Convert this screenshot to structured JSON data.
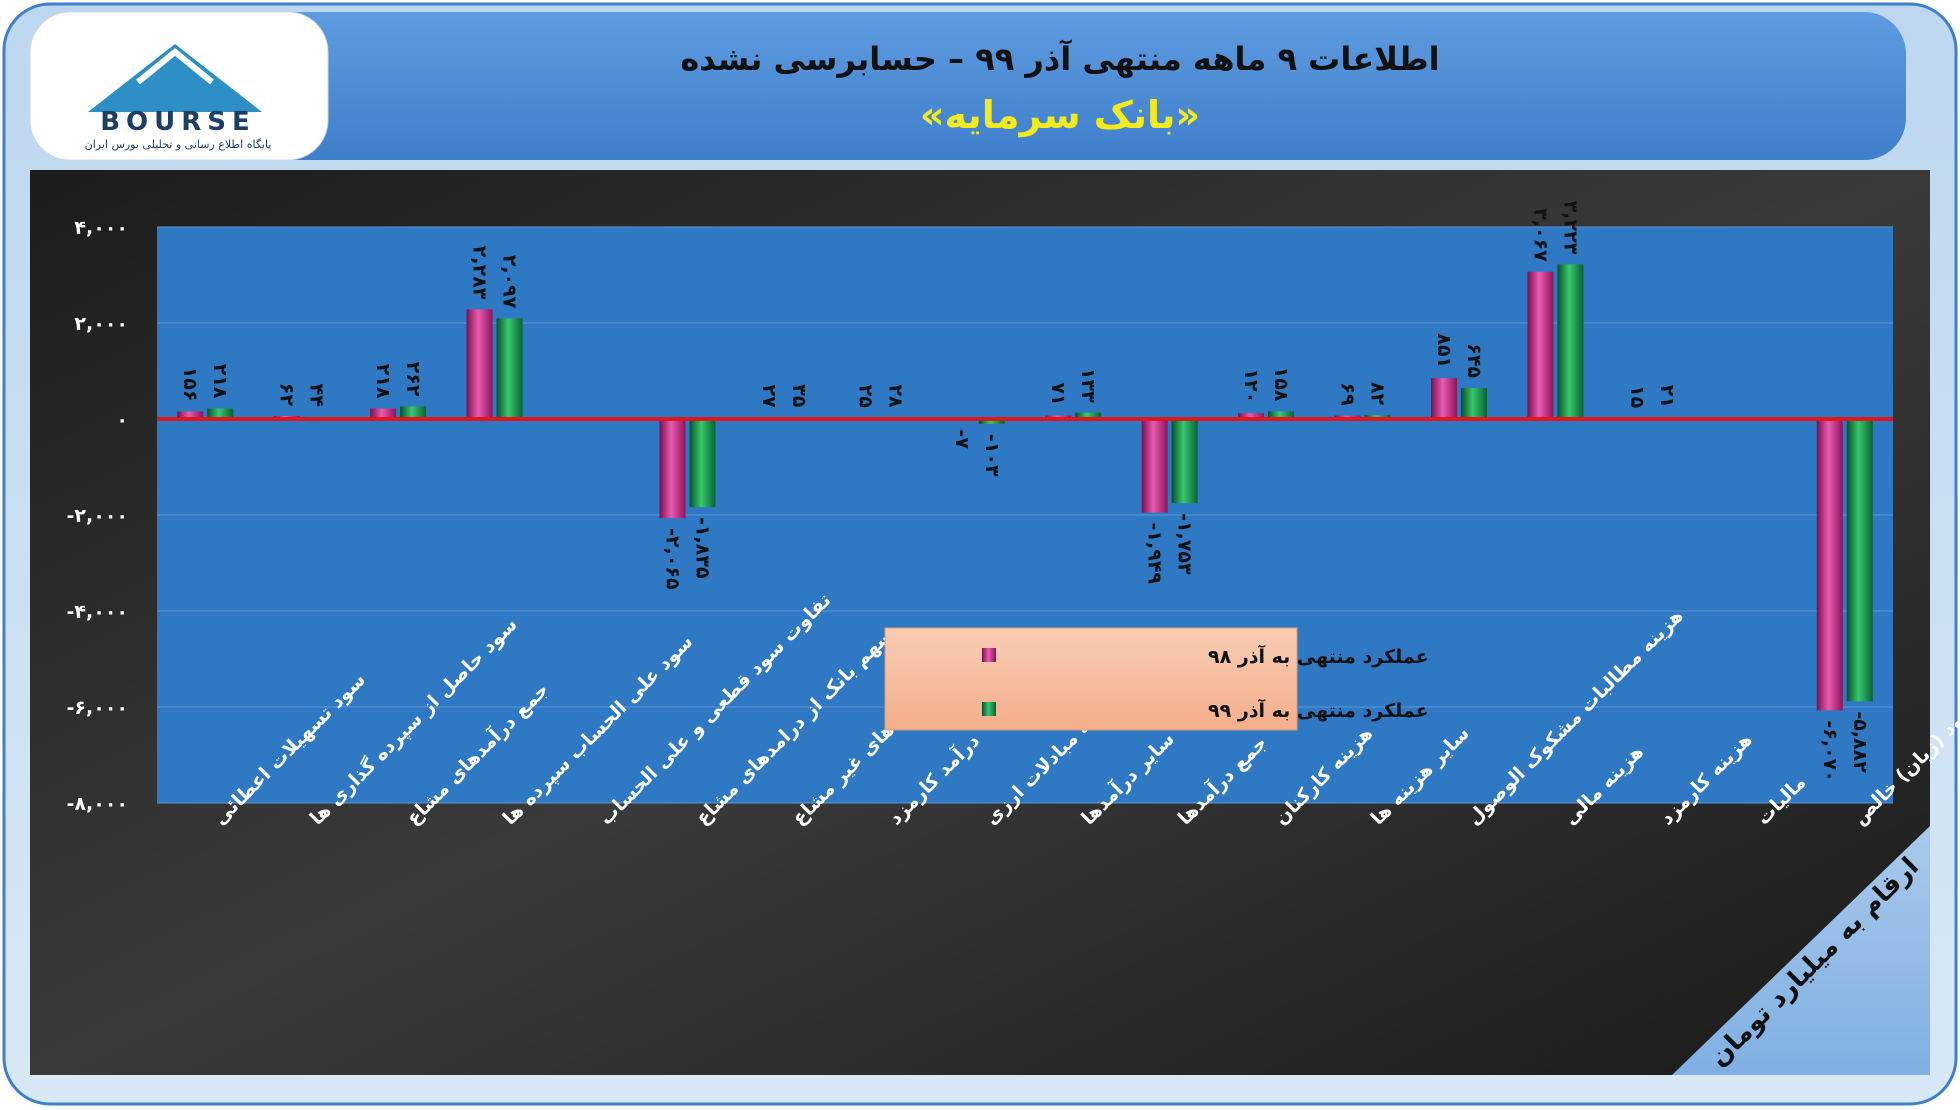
{
  "header": {
    "title": "اطلاعات ۹ ماهه منتهی آذر ۹۹ – حسابرسی نشده",
    "subtitle": "«بانک سرمایه»"
  },
  "logo": {
    "text": "BOURSE",
    "tagline": "پایگاه اطلاع رسانی و تحلیلی بورس ایران"
  },
  "unit_badge": "ارقام به میلیارد تومان",
  "colors": {
    "series1": "#c0267f",
    "series2": "#0f8a3c",
    "plot_bg": "#2e78c4",
    "zero_line": "#e0161a"
  },
  "chart_data": {
    "type": "bar",
    "categories": [
      "سود تسهیلات اعطائی",
      "سود حاصل از سپرده گذاری ها",
      "جمع درآمدهای مشاع",
      "سود علی الحساب سپرده ها",
      "تفاوت سود قطعی و علی الحساب",
      "سهم بانک از درامدهای مشاع",
      "سود فعالیت های غیر مشاع",
      "درآمد کارمزد",
      "نتیجه مبادلات ارزی",
      "سایر درآمدها",
      "جمع درآمدها",
      "هزینه کارکنان",
      "سایر هزینه ها",
      "هزینه مطالبات مشکوک الوصول",
      "هزینه مالی",
      "هزینه کارمزد",
      "مالیات",
      "سود (زیان) خالص"
    ],
    "series": [
      {
        "name": "عملکرد منتهی به آذر ۹۸",
        "values": [
          156,
          62,
          218,
          2283,
          0,
          -2065,
          27,
          25,
          -7,
          71,
          -1949,
          120,
          69,
          851,
          3067,
          15,
          0,
          -6070
        ],
        "labels": [
          "۱۵۶",
          "۶۲",
          "۲۱۸",
          "۲,۲۸۳",
          "",
          "-۲,۰۶۵",
          "۲۷",
          "۲۵",
          "-۷",
          "۷۱",
          "-۱,۹۴۹",
          "۱۲۰",
          "۶۹",
          "۸۵۱",
          "۳,۰۶۷",
          "۱۵",
          "",
          "-۶,۰۷۰"
        ]
      },
      {
        "name": "عملکرد منتهی به آذر ۹۹",
        "values": [
          218,
          44,
          262,
          2097,
          0,
          -1835,
          35,
          28,
          -103,
          133,
          -1753,
          158,
          82,
          645,
          3223,
          21,
          0,
          -5882
        ],
        "labels": [
          "۲۱۸",
          "۴۴",
          "۲۶۲",
          "۲,۰۹۷",
          "",
          "-۱,۸۳۵",
          "۳۵",
          "۲۸",
          "-۱۰۳",
          "۱۳۳",
          "-۱,۷۵۳",
          "۱۵۸",
          "۸۲",
          "۶۴۵",
          "۳,۲۲۳",
          "۲۱",
          "",
          "-۵,۸۸۲"
        ]
      }
    ],
    "yticks": [
      4000,
      2000,
      0,
      -2000,
      -4000,
      -6000,
      -8000
    ],
    "ytick_labels": [
      "۴,۰۰۰",
      "۲,۰۰۰",
      "۰",
      "-۲,۰۰۰",
      "-۴,۰۰۰",
      "-۶,۰۰۰",
      "-۸,۰۰۰"
    ],
    "ylim": [
      -8000,
      4000
    ],
    "grid": true,
    "legend_position": "bottom-center"
  }
}
